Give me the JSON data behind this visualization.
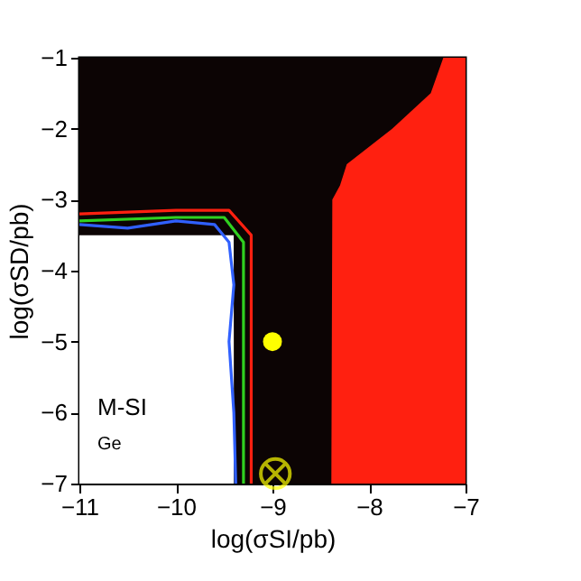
{
  "chart_data": {
    "type": "area",
    "xlabel": "log(σSI/pb)",
    "ylabel": "log(σSD/pb)",
    "xlim": [
      -11,
      -7
    ],
    "ylim": [
      -7,
      -1
    ],
    "xticks": [
      -11,
      -10,
      -9,
      -8,
      -7
    ],
    "yticks": [
      -7,
      -6,
      -5,
      -4,
      -3,
      -2,
      -1
    ],
    "grid": false,
    "line_style": "solid",
    "bands": [
      {
        "axis": "x",
        "from": -8.4,
        "to": -7,
        "color": "#ff2010"
      },
      {
        "axis": "x",
        "from": -11,
        "to": -9.4,
        "color": "#ffffff"
      }
    ],
    "series": [
      {
        "color": "#0c0404",
        "x": [
          -11,
          -9.4,
          -9.39,
          -8.39,
          -8.38,
          -8.3,
          -8.23,
          -7.76,
          -7.36,
          -7.23,
          -7
        ],
        "values": [
          -3.5,
          -3.5,
          -7,
          -7,
          -3,
          -2.8,
          -2.5,
          -2,
          -1.5,
          -1,
          -1
        ]
      },
      {
        "type": "line",
        "color": "#ff2010",
        "x": [
          -11,
          -10,
          -9.45,
          -9.22,
          -9.22
        ],
        "values": [
          -3.2,
          -3.15,
          -3.15,
          -3.5,
          -7
        ]
      },
      {
        "type": "line",
        "color": "#30d020",
        "x": [
          -11,
          -10,
          -9.5,
          -9.3,
          -9.3
        ],
        "values": [
          -3.3,
          -3.25,
          -3.25,
          -3.6,
          -7
        ]
      },
      {
        "type": "line",
        "color": "#3060ff",
        "x": [
          -11,
          -10.5,
          -10,
          -9.6,
          -9.45,
          -9.4,
          -9.45,
          -9.4,
          -9.38
        ],
        "values": [
          -3.35,
          -3.4,
          -3.3,
          -3.35,
          -3.6,
          -4.2,
          -5,
          -6,
          -7
        ]
      },
      {
        "type": "scatter",
        "color": "#ffff00",
        "marker": "circle",
        "x": [
          -9
        ],
        "values": [
          -5
        ]
      },
      {
        "type": "scatter",
        "color": "#ffff00",
        "marker": "cross",
        "x": [
          -8.97
        ],
        "values": [
          -6.86
        ]
      }
    ],
    "annotations": [
      "M-SI",
      "Ge"
    ]
  }
}
